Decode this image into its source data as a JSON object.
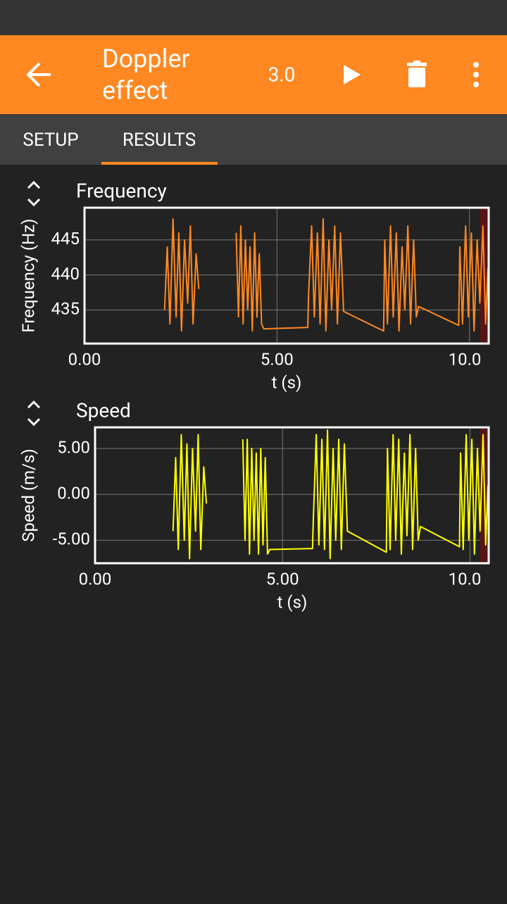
{
  "app_bar": {
    "title_line1": "Doppler",
    "title_line2": "effect",
    "value": "3.0"
  },
  "tabs": [
    "SETUP",
    "RESULTS"
  ],
  "chart_data": [
    {
      "type": "line",
      "title": "Frequency",
      "xlabel": "t (s)",
      "ylabel": "Frequency (Hz)",
      "x": [
        2.08,
        2.15,
        2.22,
        2.3,
        2.38,
        2.45,
        2.52,
        2.6,
        2.68,
        2.75,
        2.82,
        2.9,
        2.97,
        3.45,
        3.94,
        4.0,
        4.06,
        4.12,
        4.18,
        4.24,
        4.3,
        4.36,
        4.42,
        4.48,
        4.54,
        4.6,
        4.66,
        5.8,
        5.82,
        5.9,
        5.97,
        6.05,
        6.12,
        6.2,
        6.27,
        6.35,
        6.42,
        6.5,
        6.57,
        6.65,
        6.73,
        7.77,
        7.8,
        7.87,
        7.95,
        8.02,
        8.1,
        8.17,
        8.25,
        8.32,
        8.4,
        8.47,
        8.55,
        8.62,
        8.68,
        9.72,
        9.75,
        9.82,
        9.9,
        9.97,
        10.05,
        10.12,
        10.2,
        10.27,
        10.35,
        10.42,
        10.48
      ],
      "values": [
        435,
        444,
        433,
        448,
        434,
        446,
        432,
        445,
        436,
        447,
        433,
        443,
        438,
        null,
        446,
        434,
        447,
        433,
        445,
        435,
        444,
        432,
        446,
        434,
        443,
        433,
        432.3,
        432.5,
        437,
        447,
        434,
        446,
        433,
        448,
        432,
        445,
        435,
        447,
        433,
        446,
        434.8,
        432,
        445,
        433,
        447,
        434,
        446,
        432,
        444,
        435,
        447,
        433,
        445,
        434,
        435.5,
        432.8,
        444,
        433,
        447,
        434,
        446,
        432,
        445,
        436,
        447,
        433,
        441
      ],
      "color": "#ff8822",
      "xlim": [
        0,
        10.5
      ],
      "ylim": [
        430.2,
        449.6
      ],
      "xticks": [
        {
          "value": 0,
          "label": "0.00"
        },
        {
          "value": 5,
          "label": "5.00"
        },
        {
          "value": 10,
          "label": "10.0"
        }
      ],
      "yticks": [
        435,
        440,
        445
      ],
      "grid": true
    },
    {
      "type": "line",
      "title": "Speed",
      "xlabel": "t (s)",
      "ylabel": "Speed (m/s)",
      "x": [
        2.08,
        2.15,
        2.22,
        2.3,
        2.38,
        2.45,
        2.52,
        2.6,
        2.68,
        2.75,
        2.82,
        2.9,
        2.97,
        3.45,
        3.94,
        4.0,
        4.06,
        4.12,
        4.18,
        4.24,
        4.3,
        4.36,
        4.42,
        4.48,
        4.54,
        4.6,
        4.66,
        5.8,
        5.82,
        5.9,
        5.97,
        6.05,
        6.12,
        6.2,
        6.27,
        6.35,
        6.42,
        6.5,
        6.57,
        6.65,
        6.73,
        7.77,
        7.8,
        7.87,
        7.95,
        8.02,
        8.1,
        8.17,
        8.25,
        8.32,
        8.4,
        8.47,
        8.55,
        8.62,
        8.68,
        9.72,
        9.75,
        9.82,
        9.9,
        9.97,
        10.05,
        10.12,
        10.2,
        10.27,
        10.35,
        10.42,
        10.48
      ],
      "values": [
        -4,
        4,
        -6,
        6.5,
        -5,
        5.5,
        -7,
        5,
        -4,
        6.5,
        -6,
        3,
        -1,
        null,
        6,
        -5,
        6,
        -6.5,
        5,
        -5,
        4.5,
        -6.5,
        5,
        -5.5,
        4,
        -6.5,
        -6,
        -5.9,
        -3,
        6.5,
        -5.5,
        6,
        -6,
        7,
        -7,
        5,
        -5,
        6,
        -6,
        5.5,
        -4,
        -6.3,
        5,
        -6,
        6.5,
        -5,
        6,
        -6.5,
        4.5,
        -4.5,
        6.5,
        -6,
        5,
        -5,
        -3.5,
        -5.7,
        4.5,
        -6,
        6.5,
        -5,
        6,
        -6.5,
        5,
        -4,
        6.5,
        -5.5,
        1
      ],
      "color": "#ffff00",
      "xlim": [
        0,
        10.5
      ],
      "ylim": [
        -7.5,
        7.3
      ],
      "xticks": [
        {
          "value": 0,
          "label": "0.00"
        },
        {
          "value": 5,
          "label": "5.00"
        },
        {
          "value": 10,
          "label": "10.0"
        }
      ],
      "yticks": [
        {
          "value": -5,
          "label": "-5.00"
        },
        {
          "value": 0,
          "label": "0.00"
        },
        {
          "value": 5,
          "label": "5.00"
        }
      ],
      "grid": true
    }
  ]
}
